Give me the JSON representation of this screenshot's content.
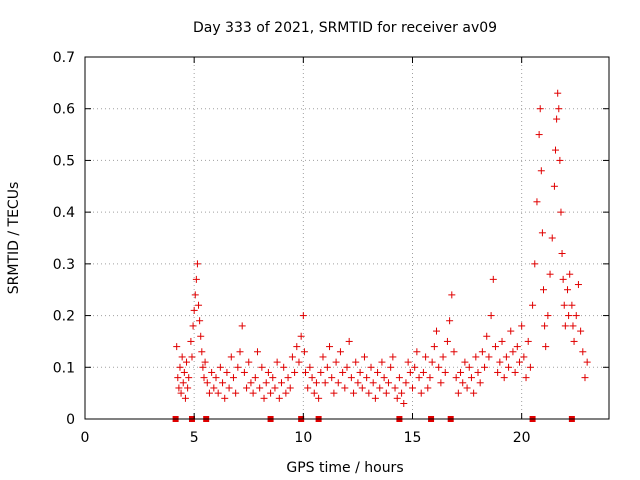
{
  "chart_data": {
    "type": "scatter",
    "title": "Day 333 of 2021, SRMTID for receiver av09",
    "xlabel": "GPS time / hours",
    "ylabel": "SRMTID / TECUs",
    "xlim": [
      0,
      24
    ],
    "ylim": [
      0,
      0.7
    ],
    "grid": true,
    "marker": "+",
    "color": "#e00000",
    "x_ticks": [
      {
        "value": 0,
        "label": "0"
      },
      {
        "value": 5,
        "label": "5"
      },
      {
        "value": 10,
        "label": "10"
      },
      {
        "value": 15,
        "label": "15"
      },
      {
        "value": 20,
        "label": "20"
      }
    ],
    "y_ticks": [
      {
        "value": 0,
        "label": "0"
      },
      {
        "value": 0.1,
        "label": "0.1"
      },
      {
        "value": 0.2,
        "label": "0.2"
      },
      {
        "value": 0.3,
        "label": "0.3"
      },
      {
        "value": 0.4,
        "label": "0.4"
      },
      {
        "value": 0.5,
        "label": "0.5"
      },
      {
        "value": 0.6,
        "label": "0.6"
      },
      {
        "value": 0.7,
        "label": "0.7"
      }
    ],
    "square_markers_x": [
      4.15,
      4.9,
      5.55,
      8.5,
      9.9,
      10.7,
      14.4,
      15.85,
      16.75,
      20.5,
      22.3
    ],
    "points": [
      [
        4.2,
        0.14
      ],
      [
        4.25,
        0.08
      ],
      [
        4.3,
        0.06
      ],
      [
        4.35,
        0.1
      ],
      [
        4.4,
        0.05
      ],
      [
        4.45,
        0.12
      ],
      [
        4.5,
        0.07
      ],
      [
        4.55,
        0.09
      ],
      [
        4.6,
        0.04
      ],
      [
        4.65,
        0.11
      ],
      [
        4.7,
        0.06
      ],
      [
        4.75,
        0.08
      ],
      [
        4.85,
        0.15
      ],
      [
        4.9,
        0.12
      ],
      [
        4.95,
        0.18
      ],
      [
        5.0,
        0.21
      ],
      [
        5.05,
        0.24
      ],
      [
        5.1,
        0.27
      ],
      [
        5.15,
        0.3
      ],
      [
        5.2,
        0.22
      ],
      [
        5.25,
        0.19
      ],
      [
        5.3,
        0.16
      ],
      [
        5.35,
        0.13
      ],
      [
        5.4,
        0.1
      ],
      [
        5.45,
        0.08
      ],
      [
        5.5,
        0.11
      ],
      [
        5.6,
        0.07
      ],
      [
        5.7,
        0.05
      ],
      [
        5.8,
        0.09
      ],
      [
        5.9,
        0.06
      ],
      [
        6.0,
        0.08
      ],
      [
        6.1,
        0.05
      ],
      [
        6.2,
        0.1
      ],
      [
        6.3,
        0.07
      ],
      [
        6.4,
        0.04
      ],
      [
        6.5,
        0.09
      ],
      [
        6.6,
        0.06
      ],
      [
        6.7,
        0.12
      ],
      [
        6.8,
        0.08
      ],
      [
        6.9,
        0.05
      ],
      [
        7.0,
        0.1
      ],
      [
        7.1,
        0.13
      ],
      [
        7.2,
        0.18
      ],
      [
        7.3,
        0.09
      ],
      [
        7.4,
        0.06
      ],
      [
        7.5,
        0.11
      ],
      [
        7.6,
        0.07
      ],
      [
        7.7,
        0.05
      ],
      [
        7.8,
        0.08
      ],
      [
        7.9,
        0.13
      ],
      [
        8.0,
        0.06
      ],
      [
        8.1,
        0.1
      ],
      [
        8.2,
        0.04
      ],
      [
        8.3,
        0.07
      ],
      [
        8.4,
        0.09
      ],
      [
        8.5,
        0.05
      ],
      [
        8.6,
        0.08
      ],
      [
        8.7,
        0.06
      ],
      [
        8.8,
        0.11
      ],
      [
        8.9,
        0.04
      ],
      [
        9.0,
        0.07
      ],
      [
        9.1,
        0.1
      ],
      [
        9.2,
        0.05
      ],
      [
        9.3,
        0.08
      ],
      [
        9.4,
        0.06
      ],
      [
        9.5,
        0.12
      ],
      [
        9.6,
        0.09
      ],
      [
        9.7,
        0.14
      ],
      [
        9.8,
        0.11
      ],
      [
        9.9,
        0.16
      ],
      [
        10.0,
        0.2
      ],
      [
        10.05,
        0.13
      ],
      [
        10.1,
        0.09
      ],
      [
        10.2,
        0.06
      ],
      [
        10.3,
        0.1
      ],
      [
        10.4,
        0.08
      ],
      [
        10.5,
        0.05
      ],
      [
        10.6,
        0.07
      ],
      [
        10.7,
        0.04
      ],
      [
        10.8,
        0.09
      ],
      [
        10.9,
        0.12
      ],
      [
        11.0,
        0.07
      ],
      [
        11.1,
        0.1
      ],
      [
        11.2,
        0.14
      ],
      [
        11.3,
        0.08
      ],
      [
        11.4,
        0.05
      ],
      [
        11.5,
        0.11
      ],
      [
        11.6,
        0.07
      ],
      [
        11.7,
        0.13
      ],
      [
        11.8,
        0.09
      ],
      [
        11.9,
        0.06
      ],
      [
        12.0,
        0.1
      ],
      [
        12.1,
        0.15
      ],
      [
        12.2,
        0.08
      ],
      [
        12.3,
        0.05
      ],
      [
        12.4,
        0.11
      ],
      [
        12.5,
        0.07
      ],
      [
        12.6,
        0.09
      ],
      [
        12.7,
        0.06
      ],
      [
        12.8,
        0.12
      ],
      [
        12.9,
        0.08
      ],
      [
        13.0,
        0.05
      ],
      [
        13.1,
        0.1
      ],
      [
        13.2,
        0.07
      ],
      [
        13.3,
        0.04
      ],
      [
        13.4,
        0.09
      ],
      [
        13.5,
        0.06
      ],
      [
        13.6,
        0.11
      ],
      [
        13.7,
        0.08
      ],
      [
        13.8,
        0.05
      ],
      [
        13.9,
        0.07
      ],
      [
        14.0,
        0.1
      ],
      [
        14.1,
        0.12
      ],
      [
        14.2,
        0.06
      ],
      [
        14.3,
        0.04
      ],
      [
        14.4,
        0.08
      ],
      [
        14.5,
        0.05
      ],
      [
        14.6,
        0.03
      ],
      [
        14.7,
        0.07
      ],
      [
        14.8,
        0.11
      ],
      [
        14.9,
        0.09
      ],
      [
        15.0,
        0.06
      ],
      [
        15.1,
        0.1
      ],
      [
        15.2,
        0.13
      ],
      [
        15.3,
        0.08
      ],
      [
        15.4,
        0.05
      ],
      [
        15.5,
        0.09
      ],
      [
        15.6,
        0.12
      ],
      [
        15.7,
        0.06
      ],
      [
        15.8,
        0.08
      ],
      [
        15.9,
        0.11
      ],
      [
        16.0,
        0.14
      ],
      [
        16.1,
        0.17
      ],
      [
        16.2,
        0.1
      ],
      [
        16.3,
        0.07
      ],
      [
        16.4,
        0.12
      ],
      [
        16.5,
        0.09
      ],
      [
        16.6,
        0.15
      ],
      [
        16.7,
        0.19
      ],
      [
        16.8,
        0.24
      ],
      [
        16.9,
        0.13
      ],
      [
        17.0,
        0.08
      ],
      [
        17.1,
        0.05
      ],
      [
        17.2,
        0.09
      ],
      [
        17.3,
        0.07
      ],
      [
        17.4,
        0.11
      ],
      [
        17.5,
        0.06
      ],
      [
        17.6,
        0.1
      ],
      [
        17.7,
        0.08
      ],
      [
        17.8,
        0.05
      ],
      [
        17.9,
        0.12
      ],
      [
        18.0,
        0.09
      ],
      [
        18.1,
        0.07
      ],
      [
        18.2,
        0.13
      ],
      [
        18.3,
        0.1
      ],
      [
        18.4,
        0.16
      ],
      [
        18.5,
        0.12
      ],
      [
        18.6,
        0.2
      ],
      [
        18.7,
        0.27
      ],
      [
        18.8,
        0.14
      ],
      [
        18.9,
        0.09
      ],
      [
        19.0,
        0.11
      ],
      [
        19.1,
        0.15
      ],
      [
        19.2,
        0.08
      ],
      [
        19.3,
        0.12
      ],
      [
        19.4,
        0.1
      ],
      [
        19.5,
        0.17
      ],
      [
        19.6,
        0.13
      ],
      [
        19.7,
        0.09
      ],
      [
        19.8,
        0.14
      ],
      [
        19.9,
        0.11
      ],
      [
        20.0,
        0.18
      ],
      [
        20.1,
        0.12
      ],
      [
        20.2,
        0.08
      ],
      [
        20.3,
        0.15
      ],
      [
        20.4,
        0.1
      ],
      [
        20.5,
        0.22
      ],
      [
        20.6,
        0.3
      ],
      [
        20.7,
        0.42
      ],
      [
        20.8,
        0.55
      ],
      [
        20.85,
        0.6
      ],
      [
        20.9,
        0.48
      ],
      [
        20.95,
        0.36
      ],
      [
        21.0,
        0.25
      ],
      [
        21.05,
        0.18
      ],
      [
        21.1,
        0.14
      ],
      [
        21.2,
        0.2
      ],
      [
        21.3,
        0.28
      ],
      [
        21.4,
        0.35
      ],
      [
        21.5,
        0.45
      ],
      [
        21.55,
        0.52
      ],
      [
        21.6,
        0.58
      ],
      [
        21.65,
        0.63
      ],
      [
        21.7,
        0.6
      ],
      [
        21.75,
        0.5
      ],
      [
        21.8,
        0.4
      ],
      [
        21.85,
        0.32
      ],
      [
        21.9,
        0.27
      ],
      [
        21.95,
        0.22
      ],
      [
        22.0,
        0.18
      ],
      [
        22.1,
        0.25
      ],
      [
        22.15,
        0.2
      ],
      [
        22.2,
        0.28
      ],
      [
        22.3,
        0.22
      ],
      [
        22.35,
        0.18
      ],
      [
        22.4,
        0.15
      ],
      [
        22.5,
        0.2
      ],
      [
        22.6,
        0.26
      ],
      [
        22.7,
        0.17
      ],
      [
        22.8,
        0.13
      ],
      [
        22.9,
        0.08
      ],
      [
        23.0,
        0.11
      ]
    ]
  }
}
